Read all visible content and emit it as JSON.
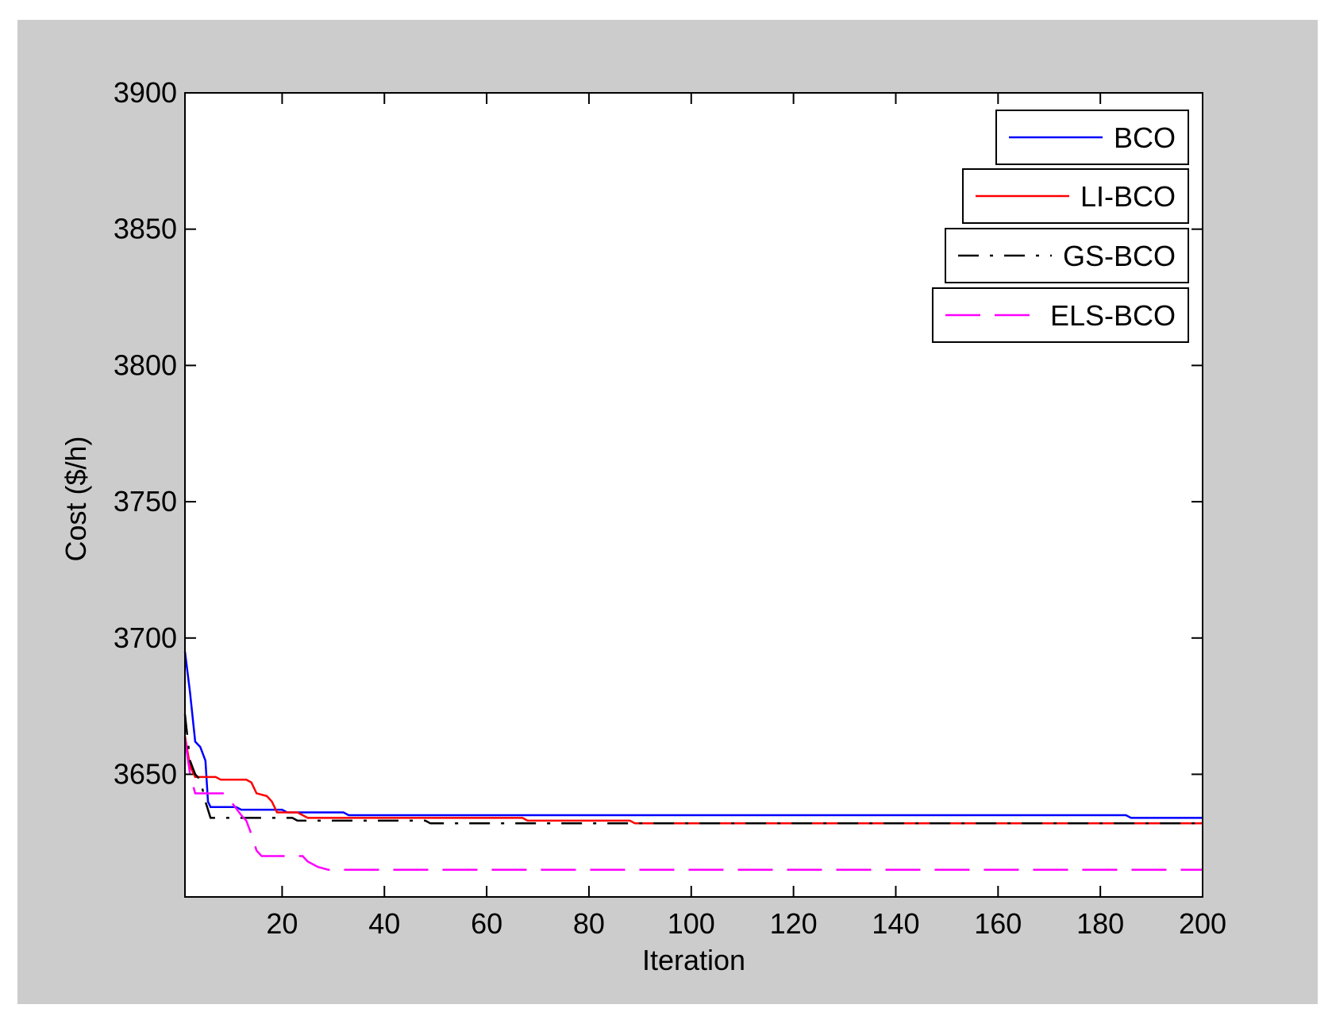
{
  "chart_data": {
    "type": "line",
    "title": "",
    "xlabel": "Iteration",
    "ylabel": "Cost ($/h)",
    "xlim": [
      1,
      200
    ],
    "ylim": [
      3605,
      3900
    ],
    "x_ticks": [
      20,
      40,
      60,
      80,
      100,
      120,
      140,
      160,
      180,
      200
    ],
    "y_ticks": [
      3650,
      3700,
      3750,
      3800,
      3850,
      3900
    ],
    "grid": false,
    "legend_position": "top-right",
    "colors": {
      "figure_background": "#cccccc",
      "plot_background": "#ffffff"
    },
    "series": [
      {
        "name": "BCO",
        "color": "#0000ff",
        "dash": "solid",
        "points": [
          [
            1,
            3695
          ],
          [
            2,
            3680
          ],
          [
            3,
            3662
          ],
          [
            4,
            3660
          ],
          [
            5,
            3655
          ],
          [
            5.5,
            3640
          ],
          [
            6,
            3638
          ],
          [
            11,
            3638
          ],
          [
            12,
            3637
          ],
          [
            20,
            3637
          ],
          [
            21,
            3636
          ],
          [
            32,
            3636
          ],
          [
            33,
            3635
          ],
          [
            185,
            3635
          ],
          [
            186,
            3634
          ],
          [
            200,
            3634
          ]
        ]
      },
      {
        "name": "LI-BCO",
        "color": "#ff0000",
        "dash": "solid",
        "points": [
          [
            1,
            3664
          ],
          [
            2,
            3653
          ],
          [
            3,
            3649
          ],
          [
            7,
            3649
          ],
          [
            8,
            3648
          ],
          [
            13,
            3648
          ],
          [
            14,
            3647
          ],
          [
            15,
            3643
          ],
          [
            17,
            3642
          ],
          [
            18,
            3640
          ],
          [
            19,
            3636
          ],
          [
            23,
            3636
          ],
          [
            24,
            3635
          ],
          [
            25,
            3634
          ],
          [
            67,
            3634
          ],
          [
            68,
            3633
          ],
          [
            88,
            3633
          ],
          [
            89,
            3632
          ],
          [
            200,
            3632
          ]
        ]
      },
      {
        "name": "GS-BCO",
        "color": "#000000",
        "dash": "dashdot",
        "points": [
          [
            1,
            3672
          ],
          [
            2,
            3655
          ],
          [
            3,
            3650
          ],
          [
            4,
            3648
          ],
          [
            5,
            3640
          ],
          [
            6,
            3634
          ],
          [
            22,
            3634
          ],
          [
            23,
            3633
          ],
          [
            48,
            3633
          ],
          [
            49,
            3632
          ],
          [
            200,
            3632
          ]
        ]
      },
      {
        "name": "ELS-BCO",
        "color": "#ff00ff",
        "dash": "dashed",
        "points": [
          [
            1,
            3663
          ],
          [
            2,
            3650
          ],
          [
            3,
            3643
          ],
          [
            9,
            3643
          ],
          [
            10,
            3640
          ],
          [
            12,
            3635
          ],
          [
            13,
            3633
          ],
          [
            14,
            3628
          ],
          [
            15,
            3622
          ],
          [
            16,
            3620
          ],
          [
            24,
            3620
          ],
          [
            25,
            3618
          ],
          [
            27,
            3616
          ],
          [
            29,
            3615
          ],
          [
            200,
            3615
          ]
        ]
      }
    ]
  }
}
